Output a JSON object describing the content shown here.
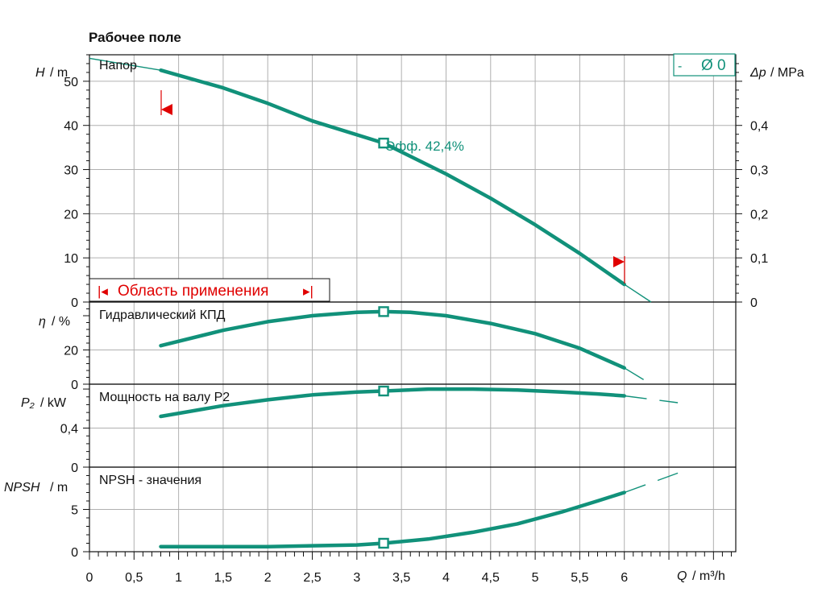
{
  "title": "Рабочее поле",
  "colors": {
    "curve": "#11917a",
    "range": "#e00000",
    "grid": "#b0b0b0",
    "axis": "#111111"
  },
  "legend": {
    "dash": "-",
    "text": "Ø 0"
  },
  "range_box": {
    "text": "Область применения",
    "left_marker": "|◂",
    "right_marker": "▸|"
  },
  "chart_data": [
    {
      "type": "line",
      "panel_title": "Напор",
      "ylabel": "H",
      "yunit": "/ m",
      "ylabel2": "Δp",
      "yunit2": "/ MPa",
      "ylim": [
        0,
        56
      ],
      "yticks": [
        0,
        10,
        20,
        30,
        40,
        50
      ],
      "ytick_labels": [
        "0",
        "10",
        "20",
        "30",
        "40",
        "50"
      ],
      "y2ticks": [
        0,
        0.1,
        0.2,
        0.3,
        0.4
      ],
      "y2tick_labels": [
        "0",
        "0,1",
        "0,2",
        "0,3",
        "0,4"
      ],
      "annotation": "Эфф.  42,4%",
      "duty_point": {
        "x": 3.3,
        "y": 36
      },
      "range_limits": [
        0.8,
        6.0
      ],
      "series": [
        {
          "x": [
            0,
            0.8,
            1.5,
            2.0,
            2.5,
            3.3,
            4.0,
            4.5,
            5.0,
            5.5,
            6.0,
            6.3
          ],
          "y": [
            55.2,
            52.5,
            48.5,
            45.0,
            41.0,
            36.0,
            29.0,
            23.5,
            17.5,
            11.0,
            4.0,
            0
          ]
        }
      ]
    },
    {
      "type": "line",
      "panel_title": "Гидравлический КПД",
      "ylabel": "η",
      "yunit": "/ %",
      "ylim": [
        0,
        48
      ],
      "yticks": [
        0,
        20
      ],
      "ytick_labels": [
        "0",
        "20"
      ],
      "duty_point": {
        "x": 3.3,
        "y": 42.4
      },
      "series": [
        {
          "x": [
            0.8,
            1.5,
            2.0,
            2.5,
            3.0,
            3.3,
            3.6,
            4.0,
            4.5,
            5.0,
            5.5,
            6.0,
            6.3
          ],
          "y": [
            22.5,
            31.5,
            36.5,
            40.0,
            42.0,
            42.4,
            42.0,
            40.0,
            35.5,
            29.5,
            21.0,
            9.5,
            0
          ]
        }
      ]
    },
    {
      "type": "line",
      "panel_title": "Мощность на валу P2",
      "ylabel": "P₂",
      "yunit": "/ kW",
      "ylim": [
        0,
        0.85
      ],
      "yticks": [
        0,
        0.4
      ],
      "ytick_labels": [
        "0",
        "0,4"
      ],
      "duty_point": {
        "x": 3.3,
        "y": 0.78
      },
      "series": [
        {
          "x": [
            0.8,
            1.5,
            2.0,
            2.5,
            3.0,
            3.3,
            3.8,
            4.3,
            4.8,
            5.3,
            5.7,
            6.0,
            6.6
          ],
          "y": [
            0.52,
            0.63,
            0.69,
            0.74,
            0.77,
            0.78,
            0.8,
            0.8,
            0.79,
            0.77,
            0.75,
            0.73,
            0.66
          ]
        }
      ]
    },
    {
      "type": "line",
      "panel_title": "NPSH - значения",
      "ylabel": "NPSH",
      "yunit": "/ m",
      "ylim": [
        0,
        10
      ],
      "yticks": [
        0,
        5
      ],
      "ytick_labels": [
        "0",
        "5"
      ],
      "duty_point": {
        "x": 3.3,
        "y": 1.0
      },
      "series": [
        {
          "x": [
            0.8,
            1.5,
            2.0,
            2.5,
            3.0,
            3.3,
            3.8,
            4.3,
            4.8,
            5.3,
            5.7,
            6.0,
            6.6
          ],
          "y": [
            0.6,
            0.6,
            0.6,
            0.7,
            0.8,
            1.0,
            1.5,
            2.3,
            3.3,
            4.7,
            6.0,
            7.0,
            9.3
          ]
        }
      ]
    }
  ],
  "x_axis": {
    "xlabel": "Q",
    "xunit": "/ m³/h",
    "xlim": [
      0,
      7.25
    ],
    "ticks": [
      0,
      0.5,
      1,
      1.5,
      2,
      2.5,
      3,
      3.5,
      4,
      4.5,
      5,
      5.5,
      6
    ],
    "tick_labels": [
      "0",
      "0,5",
      "1",
      "1,5",
      "2",
      "2,5",
      "3",
      "3,5",
      "4",
      "4,5",
      "5",
      "5,5",
      "6"
    ]
  }
}
